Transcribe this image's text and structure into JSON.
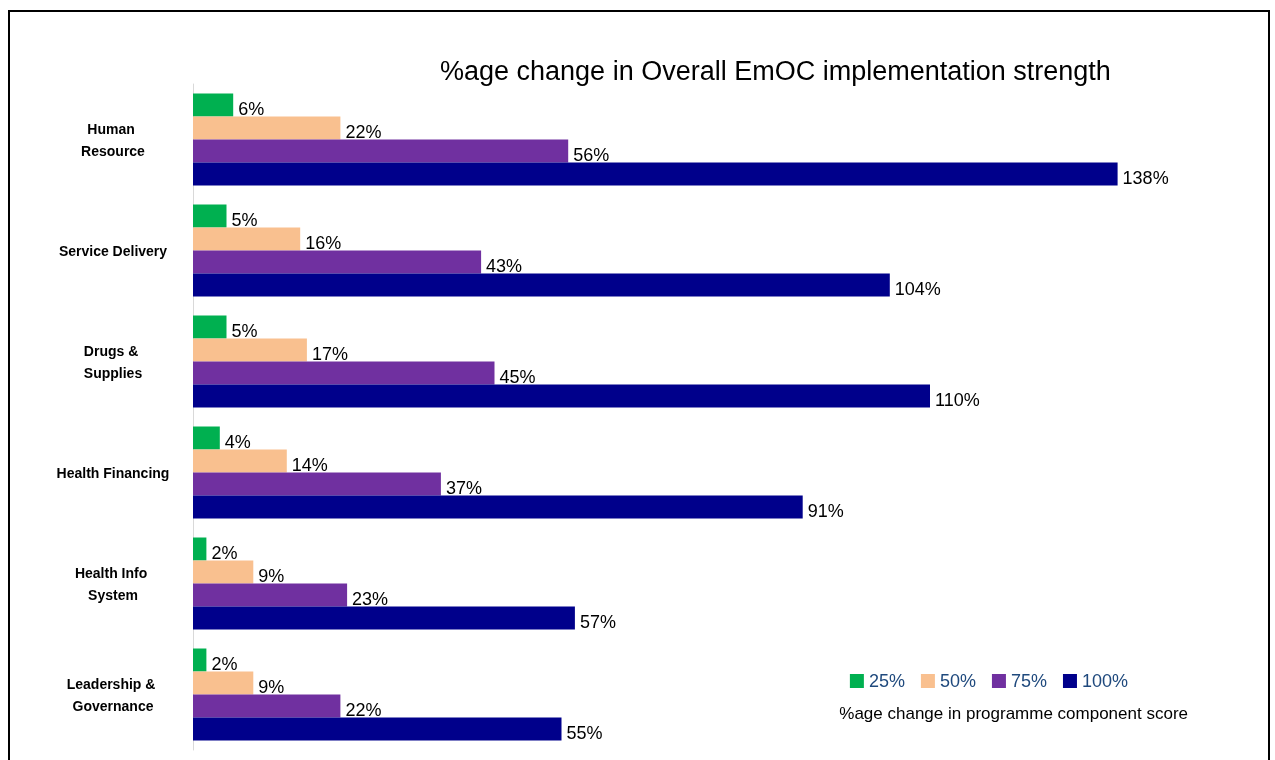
{
  "chart_data": {
    "type": "bar",
    "orientation": "horizontal",
    "title": "%age change in Overall EmOC implementation strength",
    "categories": [
      "Human Resource",
      "Service Delivery",
      "Drugs & Supplies",
      "Health Financing",
      "Health Info System",
      "Leadership & Governance"
    ],
    "series": [
      {
        "name": "25%",
        "color": "#00b050",
        "values": [
          6,
          5,
          5,
          4,
          2,
          2
        ],
        "value_labels": [
          "6%",
          "5%",
          "5%",
          "4%",
          "2%",
          "2%"
        ]
      },
      {
        "name": "50%",
        "color": "#f9c08f",
        "values": [
          22,
          16,
          17,
          14,
          9,
          9
        ],
        "value_labels": [
          "22%",
          "16%",
          "17%",
          "14%",
          "9%",
          "9%"
        ]
      },
      {
        "name": "75%",
        "color": "#7030a0",
        "values": [
          56,
          43,
          45,
          37,
          23,
          22
        ],
        "value_labels": [
          "56%",
          "43%",
          "45%",
          "37%",
          "23%",
          "22%"
        ]
      },
      {
        "name": "100%",
        "color": "#00008b",
        "values": [
          138,
          104,
          110,
          91,
          57,
          55
        ],
        "value_labels": [
          "138%",
          "104%",
          "110%",
          "91%",
          "57%",
          "55%"
        ]
      }
    ],
    "legend": "bottom right",
    "legend_title": "%age change in programme component score"
  }
}
